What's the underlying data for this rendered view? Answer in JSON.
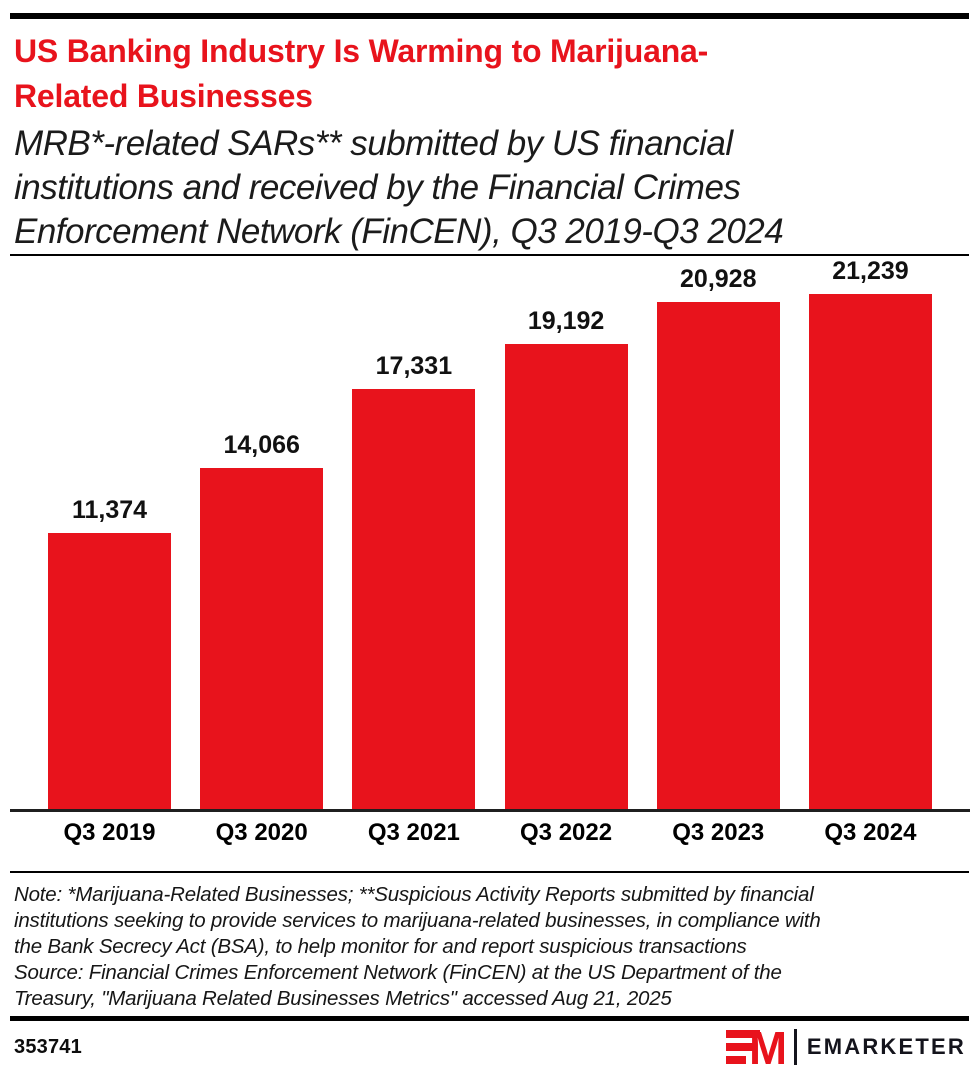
{
  "header": {
    "title_lines": [
      "US Banking Industry Is Warming to Marijuana-",
      "Related Businesses"
    ],
    "subtitle_lines": [
      "MRB*-related SARs** submitted by US financial",
      "institutions and received by the Financial Crimes",
      "Enforcement Network (FinCEN), Q3 2019-Q3 2024"
    ]
  },
  "chart_data": {
    "type": "bar",
    "title": "US Banking Industry Is Warming to Marijuana-Related Businesses",
    "subtitle": "MRB*-related SARs** submitted by US financial institutions and received by the Financial Crimes Enforcement Network (FinCEN), Q3 2019-Q3 2024",
    "categories": [
      "Q3 2019",
      "Q3 2020",
      "Q3 2021",
      "Q3 2022",
      "Q3 2023",
      "Q3 2024"
    ],
    "values": [
      11374,
      14066,
      17331,
      19192,
      20928,
      21239
    ],
    "value_labels": [
      "11,374",
      "14,066",
      "17,331",
      "19,192",
      "20,928",
      "21,239"
    ],
    "xlabel": "",
    "ylabel": "",
    "ylim": [
      0,
      21239
    ],
    "grid": false,
    "legend": "none",
    "bar_color": "#e8131c"
  },
  "footnote": {
    "note_lines": [
      "Note: *Marijuana-Related Businesses; **Suspicious Activity Reports submitted by financial",
      "institutions seeking to provide services to marijuana-related businesses, in compliance with",
      "the Bank Secrecy Act (BSA), to help monitor for and report suspicious transactions"
    ],
    "source_lines": [
      "Source: Financial Crimes Enforcement Network (FinCEN) at the US Department of the",
      "Treasury, \"Marijuana Related Businesses Metrics\" accessed Aug 21, 2025"
    ]
  },
  "footer": {
    "chart_id": "353741",
    "brand": "EMARKETER"
  },
  "colors": {
    "accent": "#e8131c",
    "text": "#111111",
    "rule": "#000000"
  }
}
